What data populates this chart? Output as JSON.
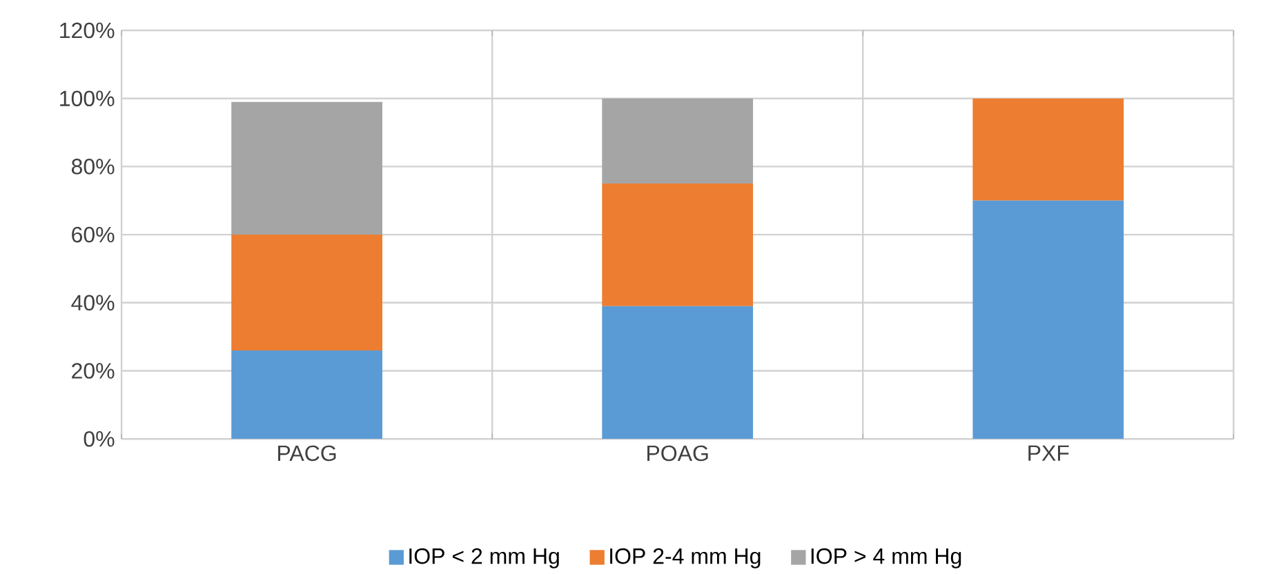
{
  "chart_data": {
    "type": "bar",
    "stacked": true,
    "categories": [
      "PACG",
      "POAG",
      "PXF"
    ],
    "series": [
      {
        "name": "IOP < 2 mm Hg",
        "color": "#5b9bd5",
        "values": [
          26,
          39,
          70
        ]
      },
      {
        "name": "IOP 2-4 mm Hg",
        "color": "#ed7d31",
        "values": [
          34,
          36,
          30
        ]
      },
      {
        "name": "IOP > 4 mm Hg",
        "color": "#a5a5a5",
        "values": [
          39,
          25,
          null
        ]
      }
    ],
    "ylim": [
      0,
      120
    ],
    "yticks": [
      {
        "value": 0,
        "label": "0%"
      },
      {
        "value": 20,
        "label": "20%"
      },
      {
        "value": 40,
        "label": "40%"
      },
      {
        "value": 60,
        "label": "60%"
      },
      {
        "value": 80,
        "label": "80%"
      },
      {
        "value": 100,
        "label": "100%"
      },
      {
        "value": 120,
        "label": "120%"
      }
    ],
    "grid": true,
    "legend": "bottom"
  }
}
